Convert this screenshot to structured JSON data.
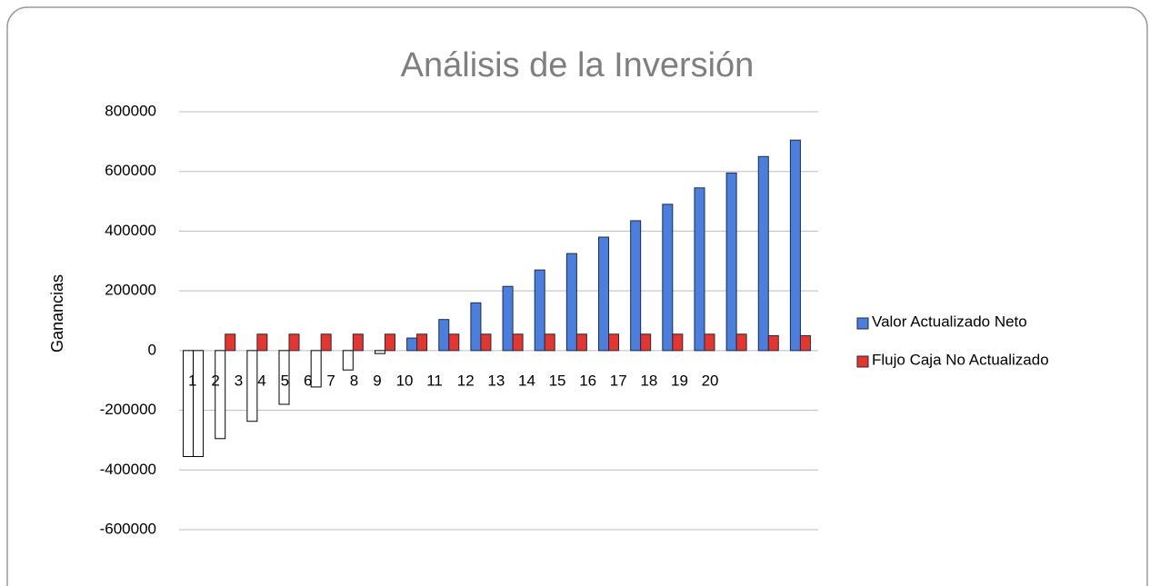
{
  "chart_data": {
    "type": "bar",
    "title": "Análisis de la Inversión",
    "y_label": "Ganancias",
    "categories": [
      "1",
      "2",
      "3",
      "4",
      "5",
      "6",
      "7",
      "8",
      "9",
      "10",
      "11",
      "12",
      "13",
      "14",
      "15",
      "16",
      "17",
      "18",
      "19",
      "20"
    ],
    "series": [
      {
        "name": "Valor Actualizado Neto",
        "color": "#4a7fe0",
        "values": [
          -355000,
          -295000,
          -237000,
          -180000,
          -122000,
          -65000,
          -10000,
          42000,
          104000,
          160000,
          215000,
          270000,
          325000,
          380000,
          435000,
          490000,
          545000,
          595000,
          650000,
          705000
        ]
      },
      {
        "name": "Flujo Caja No Actualizado",
        "color": "#e8352c",
        "values": [
          -355000,
          55000,
          55000,
          55000,
          55000,
          55000,
          55000,
          55000,
          55000,
          55000,
          55000,
          55000,
          55000,
          55000,
          55000,
          55000,
          55000,
          55000,
          50000,
          50000
        ]
      }
    ],
    "invert_if_negative": true,
    "ylim": [
      -600000,
      800000
    ],
    "yticks": [
      -600000,
      -400000,
      -200000,
      0,
      200000,
      400000,
      600000,
      800000
    ],
    "grid": true,
    "legend": "right"
  }
}
